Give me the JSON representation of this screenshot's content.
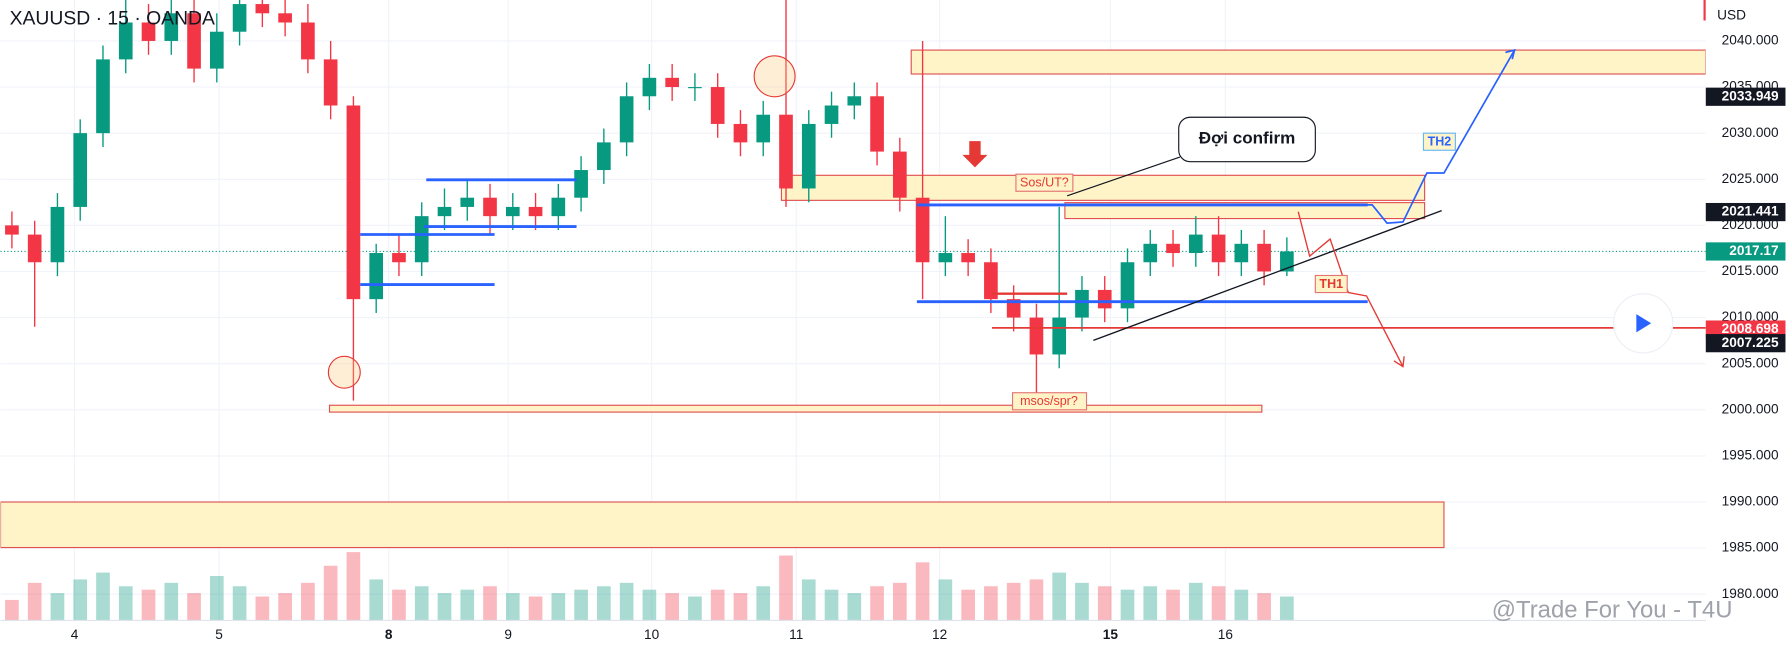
{
  "chart_data": {
    "type": "candlestick",
    "title": "XAUUSD · 15 · OANDA",
    "currency": "USD",
    "ylim": [
      1977.16,
      2044.44
    ],
    "yticks": [
      {
        "value": 2040,
        "label": "2040.000"
      },
      {
        "value": 2035,
        "label": "2035.000"
      },
      {
        "value": 2030,
        "label": "2030.000"
      },
      {
        "value": 2025,
        "label": "2025.000"
      },
      {
        "value": 2020,
        "label": "2020.000"
      },
      {
        "value": 2015,
        "label": "2015.000"
      },
      {
        "value": 2010,
        "label": "2010.000"
      },
      {
        "value": 2005,
        "label": "2005.000"
      },
      {
        "value": 2000,
        "label": "2000.000"
      },
      {
        "value": 1995,
        "label": "1995.000"
      },
      {
        "value": 1990,
        "label": "1990.000"
      },
      {
        "value": 1985,
        "label": "1985.000"
      },
      {
        "value": 1980,
        "label": "1980.000"
      }
    ],
    "x_labels": [
      "4",
      "5",
      "8",
      "9",
      "10",
      "11",
      "12",
      "15",
      "16"
    ],
    "up_color": "#089981",
    "down_color": "#f23645",
    "open": [
      2020,
      2019,
      2016,
      2022,
      2030,
      2038,
      2042,
      2040,
      2043,
      2037,
      2041,
      2044,
      2043,
      2042,
      2038,
      2033,
      2012,
      2017,
      2016,
      2021,
      2022,
      2023,
      2021,
      2022,
      2021,
      2023,
      2026,
      2029,
      2034,
      2036,
      2035,
      2035,
      2031,
      2029,
      2032,
      2024,
      2031,
      2033,
      2034,
      2028,
      2023,
      2016,
      2017,
      2016,
      2012,
      2010,
      2006,
      2010,
      2013,
      2011,
      2016,
      2018,
      2017,
      2019,
      2016,
      2018,
      2015
    ],
    "high": [
      2021.5,
      2020.5,
      2023.5,
      2031.5,
      2039.5,
      2045,
      2044,
      2046,
      2045,
      2043,
      2046,
      2046,
      2045,
      2044,
      2040,
      2034,
      2018,
      2019,
      2022.5,
      2024,
      2025,
      2024.5,
      2023.5,
      2023.5,
      2024.5,
      2027.5,
      2030.5,
      2035.5,
      2037.5,
      2037.5,
      2036.5,
      2036.5,
      2032.5,
      2033.5,
      2050,
      2032.5,
      2034.5,
      2035.5,
      2035.5,
      2029.5,
      2040,
      2021,
      2018.5,
      2017.5,
      2013.5,
      2011.5,
      2022,
      2014.5,
      2014.5,
      2017.5,
      2019.5,
      2019.5,
      2021,
      2021,
      2019.5,
      2019.5,
      2018.7
    ],
    "low": [
      2017.5,
      2009,
      2014.5,
      2020.5,
      2028.5,
      2036.5,
      2038.5,
      2038.5,
      2035.5,
      2035.5,
      2039.5,
      2041.5,
      2040.5,
      2036.5,
      2031.5,
      2001,
      2010.5,
      2014.5,
      2014.5,
      2019.5,
      2020.5,
      2019,
      2019.5,
      2019.5,
      2019.5,
      2021.5,
      2024.5,
      2027.5,
      2032.5,
      2033.5,
      2033.5,
      2029.5,
      2027.5,
      2027.5,
      2022,
      2022.5,
      2029.5,
      2031.5,
      2026.5,
      2021.5,
      2012,
      2014.5,
      2014.5,
      2010.5,
      2008.5,
      2001,
      2004.5,
      2008.5,
      2009.5,
      2009.5,
      2014.5,
      2015.5,
      2015.5,
      2014.5,
      2014.5,
      2013.5,
      2014.5
    ],
    "close": [
      2019,
      2016,
      2022,
      2030,
      2038,
      2042,
      2040,
      2043,
      2037,
      2041,
      2044,
      2043,
      2042,
      2038,
      2033,
      2012,
      2017,
      2016,
      2021,
      2022,
      2023,
      2021,
      2022,
      2021,
      2023,
      2026,
      2029,
      2034,
      2036,
      2035,
      2035,
      2031,
      2029,
      2032,
      2024,
      2031,
      2033,
      2034,
      2028,
      2023,
      2016,
      2017,
      2016,
      2012,
      2010,
      2006,
      2010,
      2013,
      2011,
      2016,
      2018,
      2017,
      2019,
      2016,
      2018,
      2015,
      2017.17
    ],
    "volume": [
      30,
      55,
      40,
      60,
      70,
      50,
      45,
      55,
      40,
      65,
      50,
      35,
      40,
      55,
      80,
      100,
      60,
      45,
      50,
      40,
      45,
      50,
      40,
      35,
      40,
      45,
      50,
      55,
      45,
      40,
      35,
      45,
      40,
      50,
      95,
      60,
      45,
      40,
      50,
      55,
      85,
      60,
      45,
      50,
      55,
      60,
      70,
      55,
      50,
      45,
      50,
      45,
      55,
      50,
      45,
      40,
      35
    ],
    "price_labels": [
      {
        "value": 2033.949,
        "color": "#131722"
      },
      {
        "value": 2021.441,
        "color": "#131722"
      },
      {
        "value": 2017.17,
        "color": "#089981"
      },
      {
        "value": 2008.698,
        "color": "#f23645"
      },
      {
        "value": 2007.225,
        "color": "#131722"
      }
    ],
    "annotations": {
      "callout": "Đợi confirm",
      "zone_top": "Sos/UT?",
      "zone_bottom": "msos/spr?",
      "scenario_1": "TH1",
      "scenario_2": "TH2"
    },
    "watermark": "@Trade For You - T4U"
  }
}
